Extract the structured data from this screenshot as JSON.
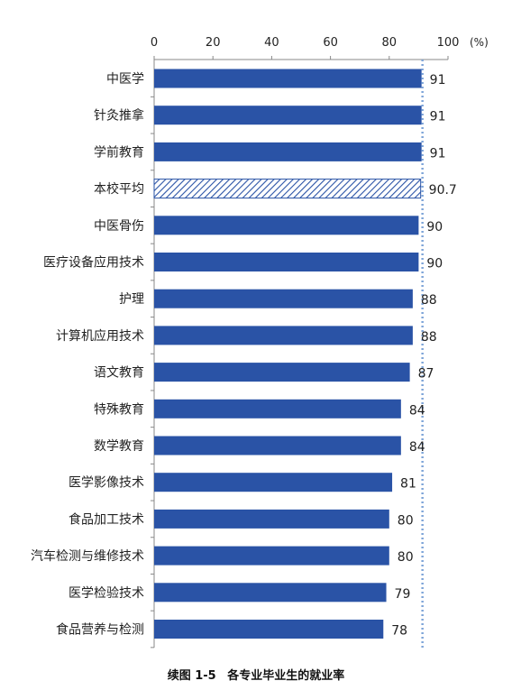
{
  "chart_data": {
    "type": "bar",
    "orientation": "horizontal",
    "categories": [
      "中医学",
      "针灸推拿",
      "学前教育",
      "本校平均",
      "中医骨伤",
      "医疗设备应用技术",
      "护理",
      "计算机应用技术",
      "语文教育",
      "特殊教育",
      "数学教育",
      "医学影像技术",
      "食品加工技术",
      "汽车检测与维修技术",
      "医学检验技术",
      "食品营养与检测"
    ],
    "values": [
      91,
      91,
      91,
      90.7,
      90,
      90,
      88,
      88,
      87,
      84,
      84,
      81,
      80,
      80,
      79,
      78
    ],
    "value_labels": [
      "91",
      "91",
      "91",
      "90.7",
      "90",
      "90",
      "88",
      "88",
      "87",
      "84",
      "84",
      "81",
      "80",
      "80",
      "79",
      "78"
    ],
    "highlight_category": "本校平均",
    "reference_line": 91,
    "xlim": [
      0,
      100
    ],
    "xticks": [
      "0",
      "20",
      "40",
      "60",
      "80",
      "100"
    ],
    "unit_label": "(%)",
    "colors": {
      "bar": "#2A53A6",
      "highlight": "#2A53A6",
      "reference": "#7FA5D8",
      "axis": "#888888"
    },
    "legend": "none",
    "grid": false
  },
  "caption": {
    "figure_no": "续图 1-5",
    "title": "各专业毕业生的就业率"
  }
}
